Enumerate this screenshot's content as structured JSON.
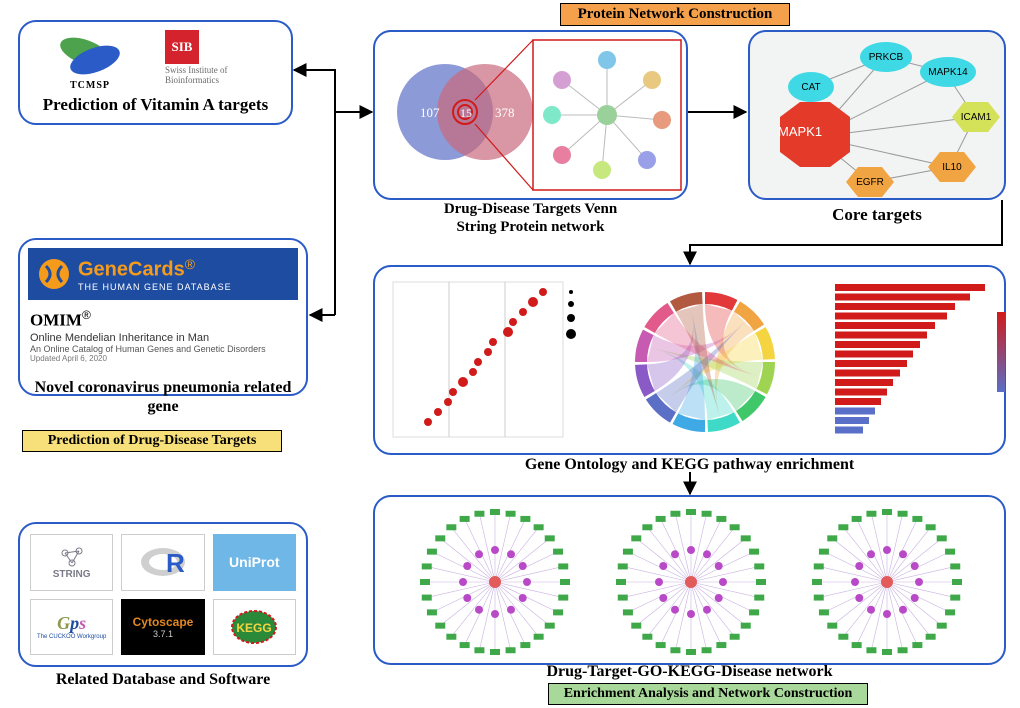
{
  "tags": {
    "protein_network": {
      "text": "Protein Network Construction",
      "bg": "#f5a04a",
      "border": "#000",
      "fontsize": 15
    },
    "prediction": {
      "text": "Prediction of Drug-Disease Targets",
      "bg": "#f7e07a",
      "border": "#000",
      "fontsize": 14
    },
    "enrichment": {
      "text": "Enrichment Analysis and Network Construction",
      "bg": "#a9d99a",
      "border": "#000",
      "fontsize": 14
    }
  },
  "panels": {
    "vitamin_a": {
      "caption": "Prediction of Vitamin A targets",
      "tcmsp_label": "TCMSP",
      "sib_top": "SIB",
      "sib_lines": "Swiss Institute of\nBioinformatics",
      "sib_red": "#d4232c",
      "sib_grey": "#6b6b6b",
      "tcmsp_green": "#4da34d"
    },
    "venn": {
      "caption": "Drug-Disease Targets Venn\nString Protein network",
      "left_n": "107",
      "mid_n": "15",
      "right_n": "378",
      "left_color": "#5b6fc7",
      "right_color": "#c96a7e",
      "overlap_color": "#7a4da0",
      "outline_red": "#d11a1a"
    },
    "core": {
      "caption": "Core targets",
      "nodes": {
        "MAPK1": {
          "color": "#e43a2a",
          "shape": "octagon"
        },
        "CAT": {
          "color": "#3fd9e5",
          "shape": "ellipse"
        },
        "PRKCB": {
          "color": "#3fd9e5",
          "shape": "ellipse"
        },
        "MAPK14": {
          "color": "#3fd9e5",
          "shape": "ellipse"
        },
        "ICAM1": {
          "color": "#d4e25a",
          "shape": "hexagon"
        },
        "IL10": {
          "color": "#f0a542",
          "shape": "hexagon"
        },
        "EGFR": {
          "color": "#f0a542",
          "shape": "hexagon"
        }
      }
    },
    "genecards": {
      "caption": "Novel coronavirus pneumonia related gene",
      "gc_bg": "#1e4ca0",
      "gc_orange": "#f59b1c",
      "gc_title": "GeneCards",
      "gc_sub": "THE HUMAN GENE DATABASE",
      "omim_title": "OMIM",
      "omim_l1": "Online Mendelian Inheritance in Man",
      "omim_l2": "An Online Catalog of Human Genes and Genetic Disorders",
      "omim_l3": "Updated April 6, 2020"
    },
    "go_kegg": {
      "caption": "Gene Ontology and KEGG pathway enrichment"
    },
    "final": {
      "caption": "Drug-Target-GO-KEGG-Disease network"
    },
    "db": {
      "caption": "Related Database and Software",
      "items": {
        "string": {
          "label": "STRING",
          "bg": "#ffffff",
          "fg": "#7a7a88"
        },
        "r": {
          "label": "R",
          "bg": "#ffffff",
          "fg": "#2a5bc7"
        },
        "uniprot": {
          "label": "UniProt",
          "bg": "#6fb7e6",
          "fg": "#ffffff"
        },
        "gps": {
          "label": "GPS",
          "bg": "#ffffff",
          "fg": "#1e4ca0"
        },
        "cytoscape": {
          "label": "Cytoscape",
          "bg": "#000000",
          "fg": "#e3881e",
          "ver": "3.7.1"
        },
        "kegg": {
          "label": "KEGG",
          "bg": "#ffffff",
          "fg": "#2a8a3a"
        }
      }
    }
  },
  "colors": {
    "panel_border": "#2a5bc7",
    "arrow": "#000000"
  },
  "chord_colors": [
    "#e23a3a",
    "#f0a542",
    "#f5d442",
    "#9ed452",
    "#3fc76a",
    "#3fd9c7",
    "#3fa9e5",
    "#5b6fc7",
    "#8a5bc7",
    "#c75bb2",
    "#e25a8a",
    "#b25a3f"
  ],
  "network_ring_colors": {
    "outer": "#3fa94a",
    "inner": "#b94ac7",
    "center": "#e25a5a"
  }
}
